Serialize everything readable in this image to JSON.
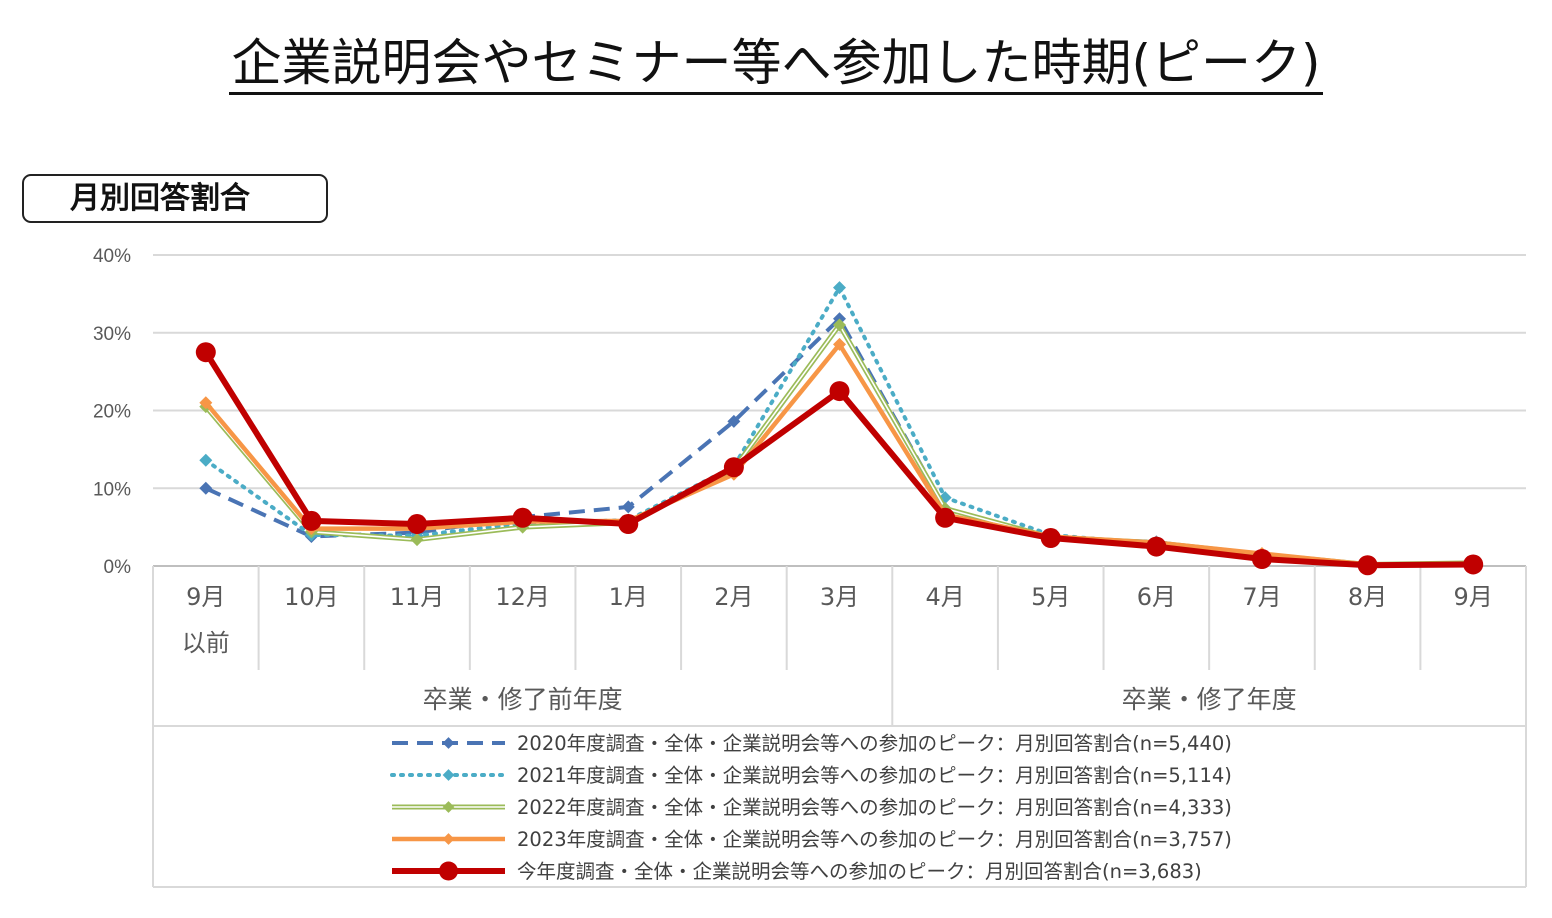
{
  "title": "企業説明会やセミナー等へ参加した時期(ピーク)",
  "badge": "月別回答割合",
  "chart_data": {
    "type": "line",
    "categories": [
      "9月\n以前",
      "10月",
      "11月",
      "12月",
      "1月",
      "2月",
      "3月",
      "4月",
      "5月",
      "6月",
      "7月",
      "8月",
      "9月"
    ],
    "groups": [
      {
        "label": "卒業・修了前年度",
        "span": [
          0,
          6
        ]
      },
      {
        "label": "卒業・修了年度",
        "span": [
          7,
          12
        ]
      }
    ],
    "y_ticks": [
      "0%",
      "10%",
      "20%",
      "30%",
      "40%"
    ],
    "ylim": [
      0,
      40
    ],
    "y_unit": "%",
    "grid": true,
    "legend_position": "bottom",
    "series": [
      {
        "name": "2020年度調査・全体・企業説明会等への参加のピーク：月別回答割合(n=5,440)",
        "color": "#4a74b4",
        "style": "dashed",
        "marker": "diamond",
        "values": [
          10.0,
          3.8,
          4.3,
          6.3,
          7.6,
          18.6,
          31.8,
          7.4,
          3.6,
          3.1,
          1.2,
          0.1,
          0.3
        ]
      },
      {
        "name": "2021年度調査・全体・企業説明会等への参加のピーク：月別回答割合(n=5,114)",
        "color": "#4bacc6",
        "style": "dotted",
        "marker": "diamond",
        "values": [
          13.6,
          4.0,
          3.9,
          5.5,
          5.9,
          12.8,
          35.8,
          8.8,
          4.0,
          2.8,
          1.1,
          0.1,
          0.3
        ]
      },
      {
        "name": "2022年度調査・全体・企業説明会等への参加のピーク：月別回答割合(n=4,333)",
        "color": "#9bbb59",
        "style": "double",
        "marker": "diamond",
        "values": [
          20.5,
          4.4,
          3.4,
          5.0,
          5.6,
          12.5,
          31.0,
          7.4,
          3.7,
          3.0,
          1.5,
          0.2,
          0.4
        ]
      },
      {
        "name": "2023年度調査・全体・企業説明会等への参加のピーク：月別回答割合(n=3,757)",
        "color": "#f79646",
        "style": "solid",
        "marker": "diamond",
        "values": [
          21.0,
          4.8,
          4.8,
          5.7,
          5.8,
          11.8,
          28.5,
          6.6,
          3.8,
          3.0,
          1.6,
          0.2,
          0.3
        ]
      },
      {
        "name": "今年度調査・全体・企業説明会等への参加のピーク：月別回答割合(n=3,683)",
        "color": "#c00000",
        "style": "solid",
        "marker": "circle",
        "values": [
          27.5,
          5.8,
          5.4,
          6.2,
          5.4,
          12.7,
          22.5,
          6.2,
          3.6,
          2.5,
          0.9,
          0.1,
          0.2
        ]
      }
    ]
  }
}
